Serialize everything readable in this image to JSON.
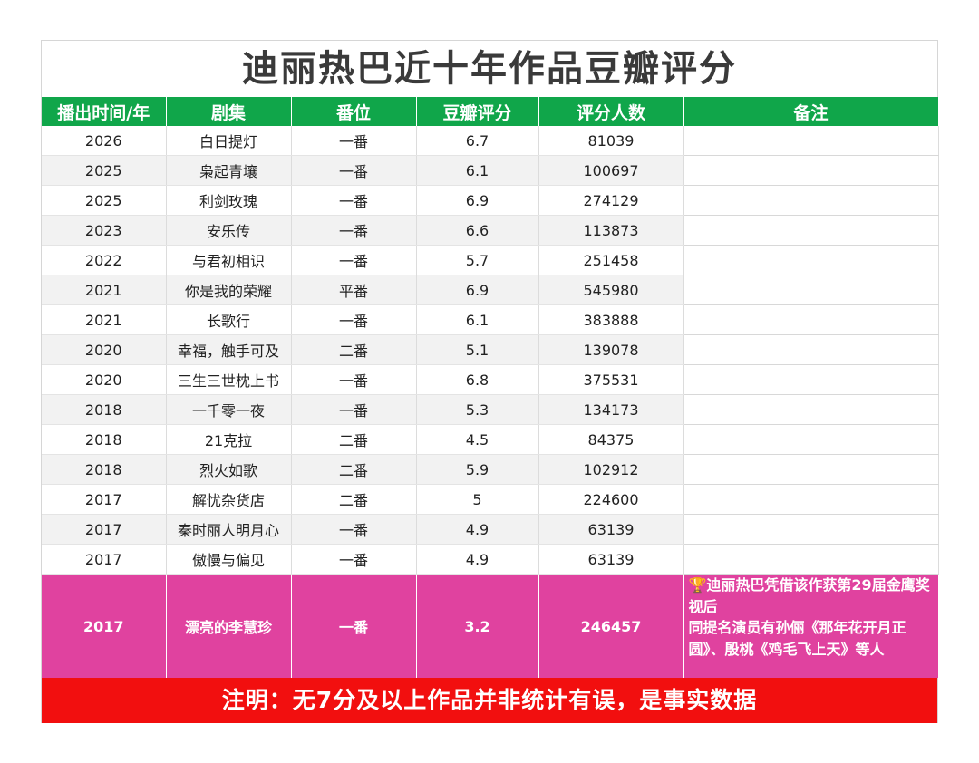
{
  "title": "迪丽热巴近十年作品豆瓣评分",
  "headers": [
    "播出时间/年",
    "剧集",
    "番位",
    "豆瓣评分",
    "评分人数",
    "备注"
  ],
  "rows": [
    {
      "year": "2026",
      "drama": "白日提灯",
      "billing": "一番",
      "score": "6.7",
      "votes": "81039"
    },
    {
      "year": "2025",
      "drama": "枭起青壤",
      "billing": "一番",
      "score": "6.1",
      "votes": "100697"
    },
    {
      "year": "2025",
      "drama": "利剑玫瑰",
      "billing": "一番",
      "score": "6.9",
      "votes": "274129"
    },
    {
      "year": "2023",
      "drama": "安乐传",
      "billing": "一番",
      "score": "6.6",
      "votes": "113873"
    },
    {
      "year": "2022",
      "drama": "与君初相识",
      "billing": "一番",
      "score": "5.7",
      "votes": "251458"
    },
    {
      "year": "2021",
      "drama": "你是我的荣耀",
      "billing": "平番",
      "score": "6.9",
      "votes": "545980"
    },
    {
      "year": "2021",
      "drama": "长歌行",
      "billing": "一番",
      "score": "6.1",
      "votes": "383888"
    },
    {
      "year": "2020",
      "drama": "幸福，触手可及",
      "billing": "二番",
      "score": "5.1",
      "votes": "139078"
    },
    {
      "year": "2020",
      "drama": "三生三世枕上书",
      "billing": "一番",
      "score": "6.8",
      "votes": "375531"
    },
    {
      "year": "2018",
      "drama": "一千零一夜",
      "billing": "一番",
      "score": "5.3",
      "votes": "134173"
    },
    {
      "year": "2018",
      "drama": "21克拉",
      "billing": "二番",
      "score": "4.5",
      "votes": "84375"
    },
    {
      "year": "2018",
      "drama": "烈火如歌",
      "billing": "二番",
      "score": "5.9",
      "votes": "102912"
    },
    {
      "year": "2017",
      "drama": "解忧杂货店",
      "billing": "二番",
      "score": "5",
      "votes": "224600"
    },
    {
      "year": "2017",
      "drama": "秦时丽人明月心",
      "billing": "一番",
      "score": "4.9",
      "votes": "63139"
    },
    {
      "year": "2017",
      "drama": "傲慢与偏见",
      "billing": "一番",
      "score": "4.9",
      "votes": "63139"
    }
  ],
  "highlight": {
    "year": "2017",
    "drama": "漂亮的李慧珍",
    "billing": "一番",
    "score": "3.2",
    "votes": "246457",
    "note_icon": "trophy-icon",
    "note_line1": "迪丽热巴凭借该作获第29届金鹰奖视后",
    "note_line2": "同提名演员有孙俪《那年花开月正圆》、殷桃《鸡毛飞上天》等人"
  },
  "footer": "注明：无7分及以上作品并非统计有误，是事实数据",
  "colors": {
    "header_bg": "#10a64a",
    "highlight_bg": "#e0429f",
    "footer_bg": "#f20f0f",
    "alt_row_bg": "#f2f2f2"
  }
}
